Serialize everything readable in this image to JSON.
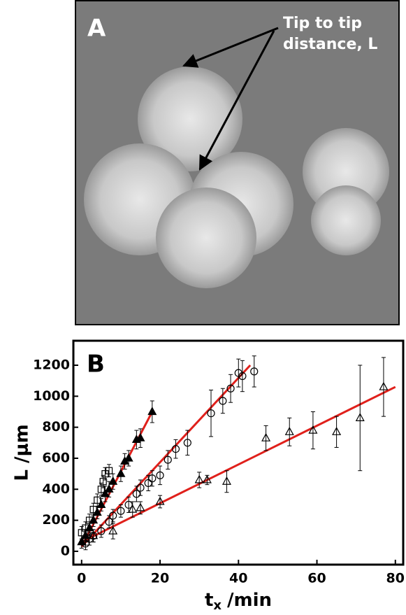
{
  "chart_data": [
    {
      "type": "image",
      "panel_label": "A",
      "annotation": [
        "Tip to tip",
        "distance, L"
      ]
    },
    {
      "type": "scatter",
      "panel_label": "B",
      "y_label": "L /μm",
      "x_label": {
        "main": "t",
        "sub": "x",
        "unit": "/min"
      },
      "xlim": [
        -2.1,
        82
      ],
      "ylim": [
        -86,
        1358
      ],
      "xticks": [
        0,
        20,
        40,
        60,
        80
      ],
      "yticks": [
        0,
        200,
        400,
        600,
        800,
        1000,
        1200
      ],
      "grid": false,
      "series": [
        {
          "marker": "square",
          "filled": false,
          "color": "#000000",
          "x": [
            0,
            1,
            2,
            3,
            4,
            5,
            5.5,
            6,
            7
          ],
          "values": [
            120,
            150,
            200,
            270,
            330,
            400,
            450,
            500,
            520
          ],
          "errors": [
            40,
            40,
            40,
            40,
            40,
            40,
            40,
            40,
            40
          ]
        },
        {
          "marker": "triangle",
          "filled": true,
          "color": "#000000",
          "x": [
            0,
            1,
            2,
            3,
            4,
            5,
            6,
            7,
            8,
            10,
            11,
            12,
            14,
            15,
            18
          ],
          "values": [
            60,
            100,
            150,
            200,
            250,
            300,
            370,
            400,
            450,
            500,
            580,
            600,
            720,
            730,
            900
          ],
          "errors": [
            40,
            40,
            40,
            40,
            40,
            40,
            50,
            50,
            50,
            50,
            50,
            50,
            60,
            60,
            70
          ]
        },
        {
          "marker": "circle",
          "filled": false,
          "color": "#000000",
          "x": [
            1,
            2,
            3,
            5,
            7,
            8,
            10,
            12,
            14,
            15,
            17,
            18,
            20,
            22,
            24,
            27,
            33,
            36,
            38,
            40,
            41,
            44
          ],
          "values": [
            50,
            80,
            100,
            130,
            190,
            230,
            260,
            300,
            370,
            410,
            440,
            470,
            490,
            590,
            660,
            700,
            890,
            970,
            1050,
            1150,
            1130,
            1160
          ],
          "errors": [
            40,
            40,
            40,
            40,
            40,
            40,
            40,
            50,
            50,
            50,
            50,
            50,
            60,
            60,
            60,
            80,
            150,
            80,
            90,
            90,
            100,
            100
          ]
        },
        {
          "marker": "triangle",
          "filled": false,
          "color": "#000000",
          "x": [
            1,
            3,
            8,
            13,
            15,
            20,
            30,
            32,
            37,
            47,
            53,
            59,
            65,
            71,
            77
          ],
          "values": [
            80,
            100,
            130,
            270,
            280,
            320,
            460,
            460,
            450,
            730,
            770,
            780,
            770,
            860,
            1060
          ],
          "errors": [
            40,
            40,
            50,
            50,
            40,
            40,
            50,
            30,
            70,
            80,
            90,
            120,
            100,
            340,
            190
          ]
        }
      ],
      "fits": [
        {
          "color": "#e0201b",
          "x": [
            0,
            18
          ],
          "values": [
            30,
            900
          ]
        },
        {
          "color": "#e0201b",
          "x": [
            0,
            43
          ],
          "values": [
            30,
            1200
          ]
        },
        {
          "color": "#e0201b",
          "x": [
            0,
            80
          ],
          "values": [
            60,
            1060
          ]
        }
      ]
    }
  ]
}
